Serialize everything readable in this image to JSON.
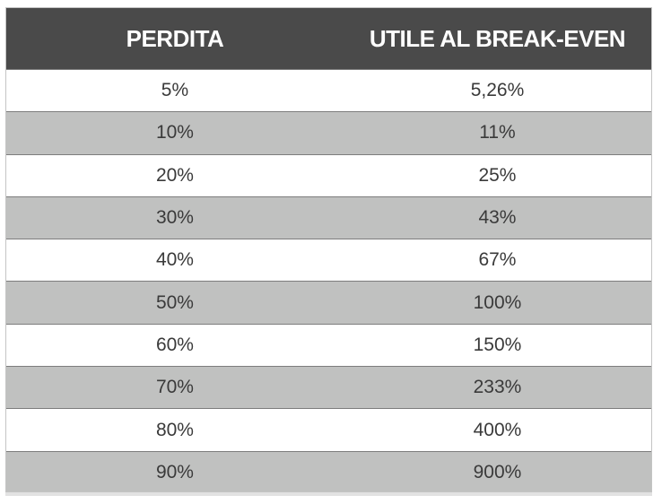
{
  "chart_data": {
    "type": "table",
    "columns": [
      "PERDITA",
      "UTILE AL BREAK-EVEN"
    ],
    "rows": [
      [
        "5%",
        "5,26%"
      ],
      [
        "10%",
        "11%"
      ],
      [
        "20%",
        "25%"
      ],
      [
        "30%",
        "43%"
      ],
      [
        "40%",
        "67%"
      ],
      [
        "50%",
        "100%"
      ],
      [
        "60%",
        "150%"
      ],
      [
        "70%",
        "233%"
      ],
      [
        "80%",
        "400%"
      ],
      [
        "90%",
        "900%"
      ]
    ]
  },
  "colors": {
    "header_bg": "#4a4a4a",
    "header_text": "#ffffff",
    "row_shade": "#c0c1c0",
    "row_plain": "#ffffff",
    "cell_text": "#3a3a3a"
  }
}
